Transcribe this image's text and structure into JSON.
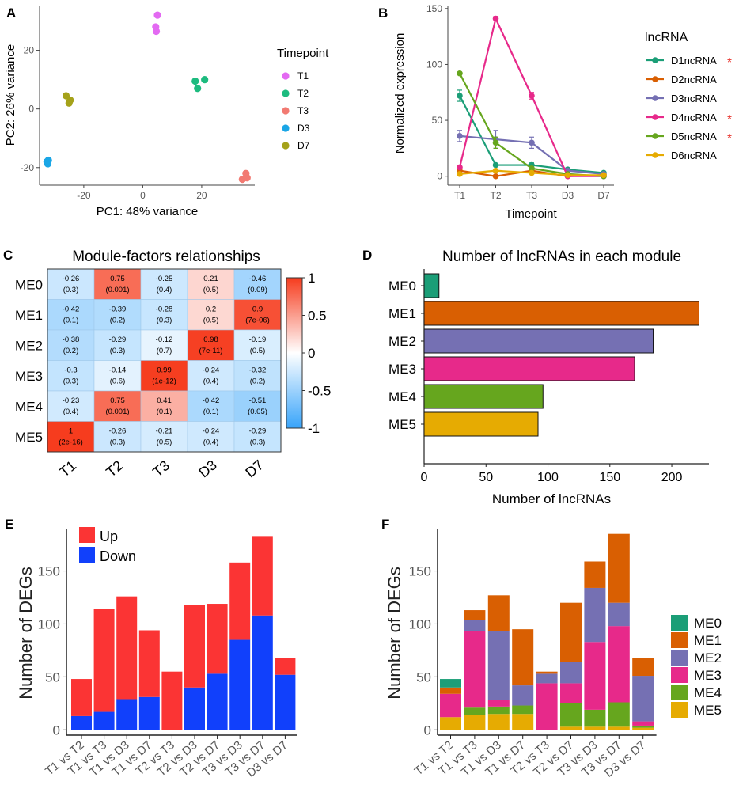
{
  "figure": {
    "panels": [
      "A",
      "B",
      "C",
      "D",
      "E",
      "F"
    ]
  },
  "chart_data": [
    {
      "id": "A",
      "type": "scatter",
      "xlabel": "PC1: 48% variance",
      "ylabel": "PC2: 26% variance",
      "xlim": [
        -35,
        38
      ],
      "ylim": [
        -26,
        35
      ],
      "xticks": [
        -20,
        0,
        20
      ],
      "yticks": [
        -20,
        0,
        20
      ],
      "legend_title": "Timepoint",
      "series": [
        {
          "name": "T1",
          "color": "#e36af2",
          "points": [
            [
              5,
              32
            ],
            [
              4.4,
              28
            ],
            [
              4.6,
              26.5
            ]
          ]
        },
        {
          "name": "T2",
          "color": "#1dbb7f",
          "points": [
            [
              17.8,
              9.5
            ],
            [
              21,
              10
            ],
            [
              18.6,
              7
            ]
          ]
        },
        {
          "name": "T3",
          "color": "#f27a72",
          "points": [
            [
              35,
              -22
            ],
            [
              33.8,
              -24
            ],
            [
              35.4,
              -23.5
            ]
          ]
        },
        {
          "name": "D3",
          "color": "#1aa6e6",
          "points": [
            [
              -32.5,
              -18
            ],
            [
              -32.2,
              -18.7
            ],
            [
              -32,
              -17.5
            ]
          ]
        },
        {
          "name": "D7",
          "color": "#a5a21a",
          "points": [
            [
              -26,
              4.5
            ],
            [
              -24.6,
              3
            ],
            [
              -25,
              2
            ]
          ]
        }
      ]
    },
    {
      "id": "B",
      "type": "line",
      "xlabel": "Timepoint",
      "ylabel": "Normalized expression",
      "categories": [
        "T1",
        "T2",
        "T3",
        "D3",
        "D7"
      ],
      "ylim": [
        -8,
        152
      ],
      "yticks": [
        0,
        50,
        100,
        150
      ],
      "legend_title": "lncRNA",
      "series": [
        {
          "name": "D1ncRNA",
          "star": "*",
          "color": "#1b9e77",
          "values": [
            72,
            10,
            10,
            6,
            3
          ],
          "err": [
            5,
            0,
            2,
            0,
            0
          ]
        },
        {
          "name": "D2ncRNA",
          "star": "",
          "color": "#d95f02",
          "values": [
            5,
            0,
            5,
            0,
            1
          ],
          "err": [
            0,
            0,
            0,
            0,
            0
          ]
        },
        {
          "name": "D3ncRNA",
          "star": "",
          "color": "#7570b3",
          "values": [
            36,
            33,
            30,
            5,
            2
          ],
          "err": [
            5,
            8,
            5,
            0,
            0
          ]
        },
        {
          "name": "D4ncRNA",
          "star": "*",
          "color": "#e7298a",
          "values": [
            8,
            141,
            72,
            0,
            0
          ],
          "err": [
            0,
            2,
            3,
            0,
            0
          ]
        },
        {
          "name": "D5ncRNA",
          "star": "*",
          "color": "#66a61e",
          "values": [
            92,
            30,
            7,
            2,
            0
          ],
          "err": [
            0,
            5,
            0,
            0,
            0
          ]
        },
        {
          "name": "D6ncRNA",
          "star": "",
          "color": "#e6ab02",
          "values": [
            2,
            5,
            3,
            1,
            1
          ],
          "err": [
            0,
            0,
            0,
            0,
            0
          ]
        }
      ]
    },
    {
      "id": "C",
      "type": "heatmap",
      "title": "Module-factors relationships",
      "rows": [
        "ME0",
        "ME1",
        "ME2",
        "ME3",
        "ME4",
        "ME5"
      ],
      "cols": [
        "T1",
        "T2",
        "T3",
        "D3",
        "D7"
      ],
      "values": [
        [
          -0.26,
          0.75,
          -0.25,
          0.21,
          -0.46
        ],
        [
          -0.42,
          -0.39,
          -0.28,
          0.2,
          0.9
        ],
        [
          -0.38,
          -0.29,
          -0.12,
          0.98,
          -0.19
        ],
        [
          -0.3,
          -0.14,
          0.99,
          -0.24,
          -0.32
        ],
        [
          -0.23,
          0.75,
          0.41,
          -0.42,
          -0.51
        ],
        [
          1,
          -0.26,
          -0.21,
          -0.24,
          -0.29
        ]
      ],
      "labels": [
        [
          "-0.26",
          "0.75",
          "-0.25",
          "0.21",
          "-0.46"
        ],
        [
          "-0.42",
          "-0.39",
          "-0.28",
          "0.2",
          "0.9"
        ],
        [
          "-0.38",
          "-0.29",
          "-0.12",
          "0.98",
          "-0.19"
        ],
        [
          "-0.3",
          "-0.14",
          "0.99",
          "-0.24",
          "-0.32"
        ],
        [
          "-0.23",
          "0.75",
          "0.41",
          "-0.42",
          "-0.51"
        ],
        [
          "1",
          "-0.26",
          "-0.21",
          "-0.24",
          "-0.29"
        ]
      ],
      "pvalues": [
        [
          "(0.3)",
          "(0.001)",
          "(0.4)",
          "(0.5)",
          "(0.09)"
        ],
        [
          "(0.1)",
          "(0.2)",
          "(0.3)",
          "(0.5)",
          "(7e-06)"
        ],
        [
          "(0.2)",
          "(0.3)",
          "(0.7)",
          "(7e-11)",
          "(0.5)"
        ],
        [
          "(0.3)",
          "(0.6)",
          "(1e-12)",
          "(0.4)",
          "(0.2)"
        ],
        [
          "(0.4)",
          "(0.001)",
          "(0.1)",
          "(0.1)",
          "(0.05)"
        ],
        [
          "(2e-16)",
          "(0.3)",
          "(0.5)",
          "(0.4)",
          "(0.3)"
        ]
      ],
      "scale": [
        "1",
        "0.5",
        "0",
        "-0.5",
        "-1"
      ]
    },
    {
      "id": "D",
      "type": "bar",
      "orientation": "horizontal",
      "title": "Number of lncRNAs in each module",
      "xlabel": "Number of lncRNAs",
      "categories": [
        "ME0",
        "ME1",
        "ME2",
        "ME3",
        "ME4",
        "ME5"
      ],
      "values": [
        12,
        222,
        185,
        170,
        96,
        92
      ],
      "colors": [
        "#1b9e77",
        "#d95f02",
        "#7570b3",
        "#e7298a",
        "#66a61e",
        "#e6ab02"
      ],
      "xlim": [
        0,
        230
      ],
      "xticks": [
        0,
        50,
        100,
        150,
        200
      ]
    },
    {
      "id": "E",
      "type": "bar",
      "stacked": true,
      "ylabel": "Number of DEGs",
      "categories": [
        "T1 vs T2",
        "T1 vs T3",
        "T1 vs D3",
        "T1 vs D7",
        "T2 vs T3",
        "T2 vs D3",
        "T2 vs D7",
        "T3 vs D3",
        "T3 vs D7",
        "D3 vs D7"
      ],
      "series": [
        {
          "name": "Down",
          "color": "#1140fb",
          "values": [
            13,
            17,
            29,
            31,
            0,
            40,
            53,
            85,
            108,
            52
          ]
        },
        {
          "name": "Up",
          "color": "#fb3434",
          "values": [
            35,
            97,
            97,
            63,
            55,
            78,
            66,
            73,
            75,
            16
          ]
        }
      ],
      "ylim": [
        -5,
        190
      ],
      "yticks": [
        0,
        50,
        100,
        150
      ]
    },
    {
      "id": "F",
      "type": "bar",
      "stacked": true,
      "ylabel": "Number of DEGs",
      "categories": [
        "T1 vs T2",
        "T1 vs T3",
        "T1 vs D3",
        "T1 vs D7",
        "T2 vs T3",
        "T2 vs D7",
        "T3 vs D3",
        "T3 vs D7",
        "D3 vs D7"
      ],
      "series": [
        {
          "name": "ME5",
          "color": "#e6ab02",
          "values": [
            12,
            14,
            15,
            15,
            0,
            3,
            3,
            3,
            2
          ]
        },
        {
          "name": "ME4",
          "color": "#66a61e",
          "values": [
            0,
            7,
            7,
            8,
            0,
            22,
            16,
            23,
            2
          ]
        },
        {
          "name": "ME3",
          "color": "#e7298a",
          "values": [
            22,
            72,
            6,
            0,
            44,
            19,
            64,
            72,
            4
          ]
        },
        {
          "name": "ME2",
          "color": "#7570b3",
          "values": [
            0,
            11,
            65,
            19,
            9,
            20,
            51,
            22,
            43
          ]
        },
        {
          "name": "ME1",
          "color": "#d95f02",
          "values": [
            6,
            9,
            34,
            53,
            2,
            56,
            25,
            65,
            17
          ]
        },
        {
          "name": "ME0",
          "color": "#1b9e77",
          "values": [
            8,
            0,
            0,
            0,
            0,
            0,
            0,
            0,
            0
          ]
        }
      ],
      "ylim": [
        -5,
        190
      ],
      "yticks": [
        0,
        50,
        100,
        150
      ]
    }
  ]
}
